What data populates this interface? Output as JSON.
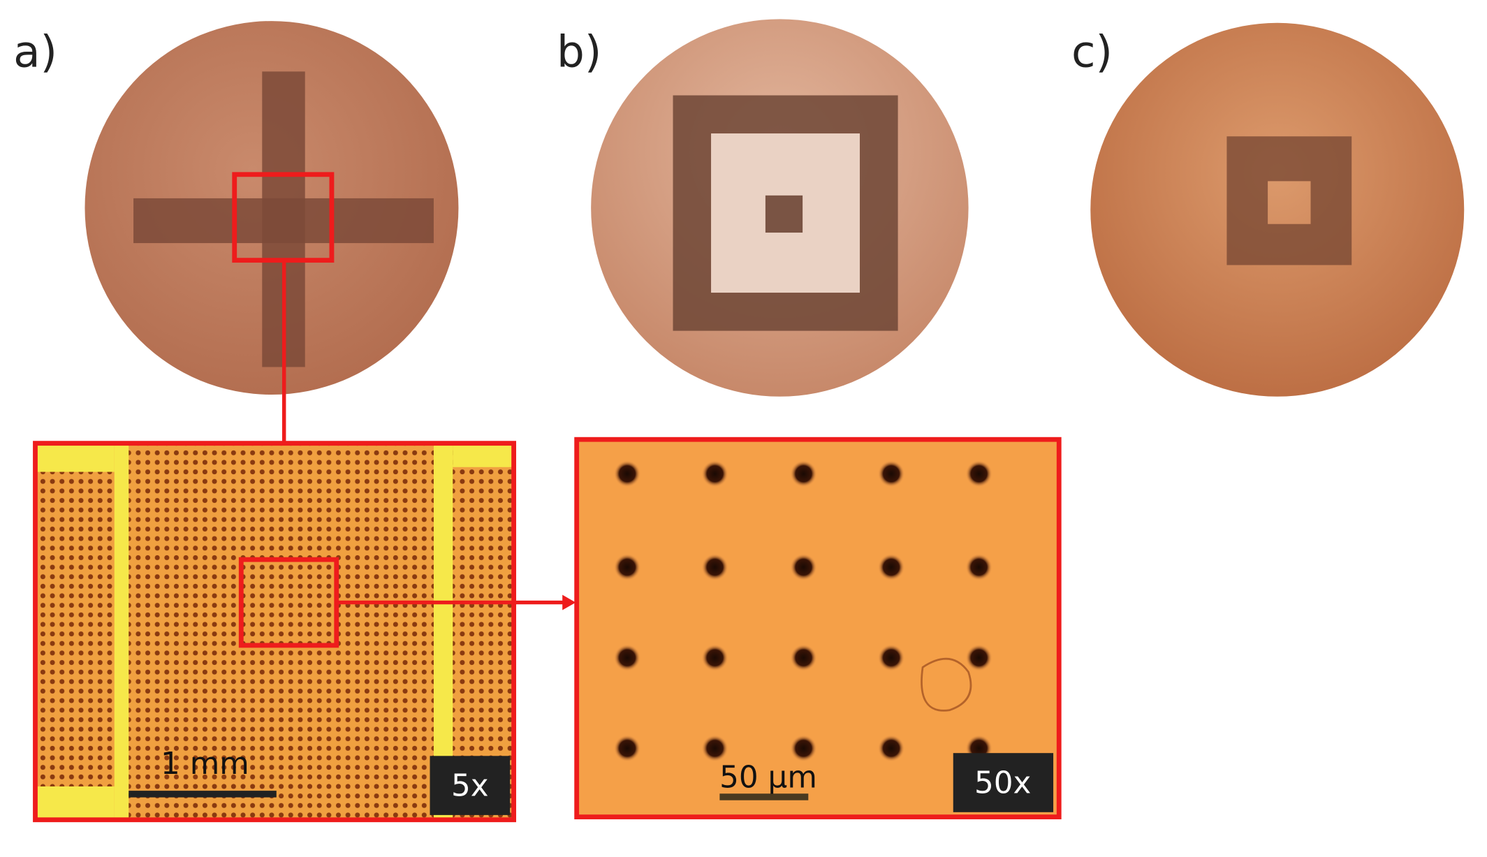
{
  "panels": [
    {
      "label": "a)"
    },
    {
      "label": "b)"
    },
    {
      "label": "c)"
    }
  ],
  "insets": [
    {
      "scale_bar": "1 mm",
      "magnification": "5x"
    },
    {
      "scale_bar": "50 µm",
      "magnification": "50x"
    }
  ]
}
